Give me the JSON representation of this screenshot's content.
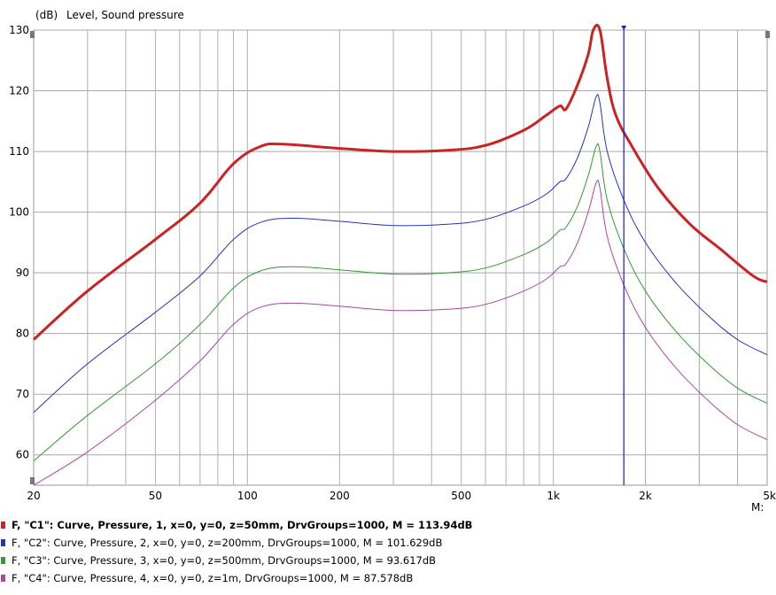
{
  "chart_data": {
    "type": "line",
    "title": "",
    "ylabel_unit": "(dB)",
    "ylabel": "Level, Sound pressure",
    "x_scale": "log",
    "xlim": [
      20,
      5000
    ],
    "ylim": [
      55,
      130
    ],
    "grid": true,
    "y_ticks": [
      "130",
      "120",
      "110",
      "100",
      "90",
      "80",
      "70",
      "60"
    ],
    "x_ticks": [
      "20",
      "50",
      "100",
      "200",
      "500",
      "1k",
      "2k",
      "5k"
    ],
    "marker_label": "M:",
    "marker_x": 1700,
    "series": [
      {
        "name": "C1",
        "color": "#cc2222",
        "points": [
          [
            20,
            79
          ],
          [
            30,
            87
          ],
          [
            50,
            95.5
          ],
          [
            70,
            101.5
          ],
          [
            90,
            108
          ],
          [
            110,
            110.8
          ],
          [
            130,
            111.2
          ],
          [
            200,
            110.5
          ],
          [
            300,
            110
          ],
          [
            450,
            110.2
          ],
          [
            600,
            111
          ],
          [
            800,
            113.5
          ],
          [
            950,
            116
          ],
          [
            1050,
            117.5
          ],
          [
            1100,
            117
          ],
          [
            1200,
            121
          ],
          [
            1300,
            126
          ],
          [
            1350,
            130
          ],
          [
            1420,
            130
          ],
          [
            1500,
            122
          ],
          [
            1600,
            116
          ],
          [
            1800,
            111
          ],
          [
            2200,
            104
          ],
          [
            2800,
            98
          ],
          [
            3500,
            94
          ],
          [
            4500,
            89.5
          ],
          [
            5000,
            88.5
          ]
        ]
      },
      {
        "name": "C2",
        "color": "#2233bb",
        "points": [
          [
            20,
            67
          ],
          [
            30,
            75
          ],
          [
            50,
            83.5
          ],
          [
            70,
            89.5
          ],
          [
            90,
            95.5
          ],
          [
            110,
            98.3
          ],
          [
            140,
            99
          ],
          [
            200,
            98.5
          ],
          [
            300,
            97.8
          ],
          [
            450,
            98
          ],
          [
            600,
            98.8
          ],
          [
            800,
            101
          ],
          [
            950,
            103
          ],
          [
            1050,
            105
          ],
          [
            1100,
            105.5
          ],
          [
            1200,
            109
          ],
          [
            1300,
            114
          ],
          [
            1380,
            119
          ],
          [
            1420,
            118
          ],
          [
            1500,
            110
          ],
          [
            1700,
            102
          ],
          [
            2000,
            95
          ],
          [
            2500,
            88.5
          ],
          [
            3200,
            83
          ],
          [
            4000,
            79
          ],
          [
            5000,
            76.5
          ]
        ]
      },
      {
        "name": "C3",
        "color": "#339933",
        "points": [
          [
            20,
            59
          ],
          [
            30,
            66.5
          ],
          [
            50,
            75
          ],
          [
            70,
            81.5
          ],
          [
            90,
            87.5
          ],
          [
            110,
            90.3
          ],
          [
            140,
            91
          ],
          [
            200,
            90.5
          ],
          [
            300,
            89.8
          ],
          [
            450,
            90
          ],
          [
            600,
            90.8
          ],
          [
            800,
            93
          ],
          [
            950,
            95
          ],
          [
            1050,
            97
          ],
          [
            1100,
            97.5
          ],
          [
            1200,
            101
          ],
          [
            1300,
            106
          ],
          [
            1380,
            110.8
          ],
          [
            1420,
            110
          ],
          [
            1500,
            102
          ],
          [
            1700,
            94
          ],
          [
            2000,
            87
          ],
          [
            2500,
            80.5
          ],
          [
            3200,
            75
          ],
          [
            4000,
            71
          ],
          [
            5000,
            68.5
          ]
        ]
      },
      {
        "name": "C4",
        "color": "#aa44aa",
        "points": [
          [
            20,
            55
          ],
          [
            30,
            60.5
          ],
          [
            50,
            69
          ],
          [
            70,
            75.5
          ],
          [
            90,
            81.5
          ],
          [
            110,
            84.3
          ],
          [
            140,
            85
          ],
          [
            200,
            84.5
          ],
          [
            300,
            83.8
          ],
          [
            450,
            84
          ],
          [
            600,
            84.8
          ],
          [
            800,
            87
          ],
          [
            950,
            89
          ],
          [
            1050,
            91
          ],
          [
            1100,
            91.5
          ],
          [
            1200,
            95
          ],
          [
            1300,
            100
          ],
          [
            1380,
            104.8
          ],
          [
            1420,
            104
          ],
          [
            1500,
            96
          ],
          [
            1700,
            88
          ],
          [
            2000,
            81
          ],
          [
            2500,
            74.5
          ],
          [
            3200,
            69
          ],
          [
            4000,
            65
          ],
          [
            5000,
            62.5
          ]
        ]
      }
    ]
  },
  "legend": [
    {
      "text": "F, \"C1\": Curve, Pressure, 1, x=0, y=0, z=50mm, DrvGroups=1000, M = 113.94dB",
      "color": "#cc2222",
      "bold": true
    },
    {
      "text": "F, \"C2\": Curve, Pressure, 2, x=0, y=0, z=200mm, DrvGroups=1000, M = 101.629dB",
      "color": "#2233bb",
      "bold": false
    },
    {
      "text": "F, \"C3\": Curve, Pressure, 3, x=0, y=0, z=500mm, DrvGroups=1000, M = 93.617dB",
      "color": "#339933",
      "bold": false
    },
    {
      "text": "F, \"C4\": Curve, Pressure, 4, x=0, y=0, z=1m, DrvGroups=1000, M = 87.578dB",
      "color": "#aa44aa",
      "bold": false
    }
  ]
}
